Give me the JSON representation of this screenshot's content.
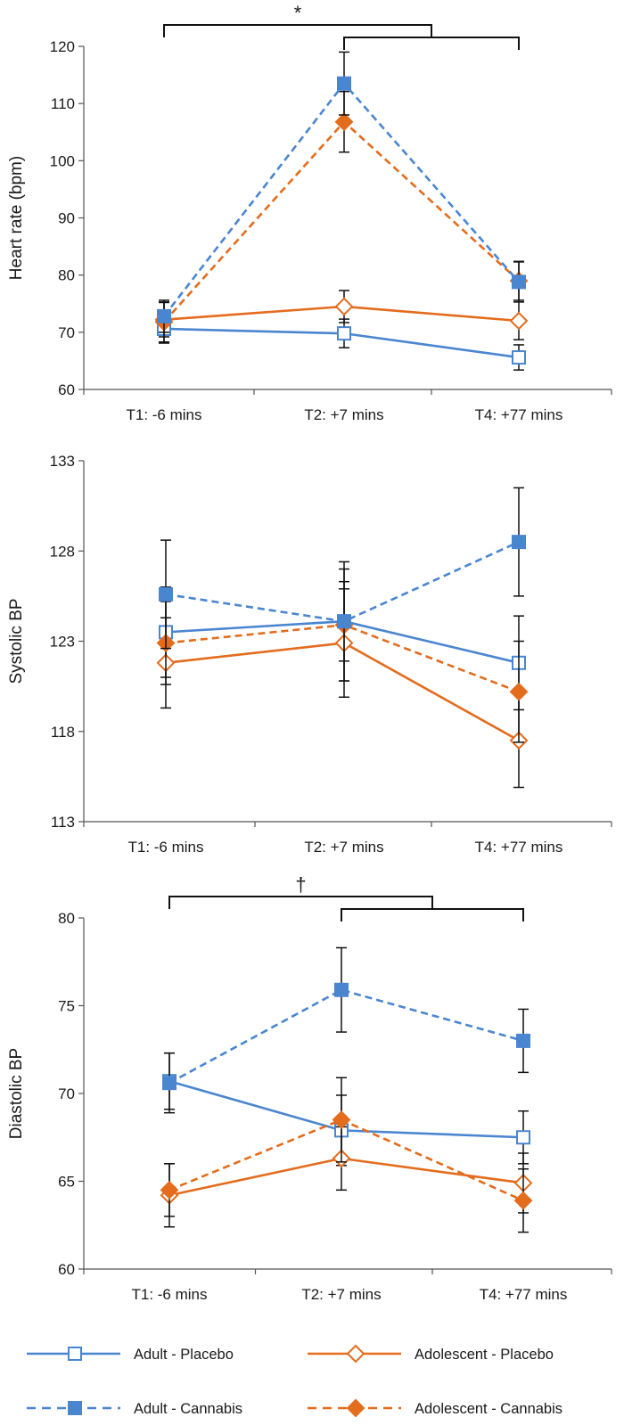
{
  "legend": [
    {
      "key": "adult_placebo",
      "label": "Adult - Placebo"
    },
    {
      "key": "adult_cannabis",
      "label": "Adult - Cannabis"
    },
    {
      "key": "adolescent_placebo",
      "label": "Adolescent - Placebo"
    },
    {
      "key": "adolescent_cannabis",
      "label": "Adolescent - Cannabis"
    }
  ],
  "styles": {
    "adult_placebo": {
      "color": "#4a86d0",
      "dash": "solid",
      "marker": "square",
      "filled": false
    },
    "adult_cannabis": {
      "color": "#4a86d0",
      "dash": "dashed",
      "marker": "square",
      "filled": true
    },
    "adolescent_placebo": {
      "color": "#e36c1d",
      "dash": "solid",
      "marker": "diamond",
      "filled": false
    },
    "adolescent_cannabis": {
      "color": "#e36c1d",
      "dash": "dashed",
      "marker": "diamond",
      "filled": true
    }
  },
  "chart_data": [
    {
      "type": "line",
      "title": "",
      "xlabel": "",
      "ylabel": "Heart rate (bpm)",
      "categories": [
        "T1: -6 mins",
        "T2: +7 mins",
        "T4: +77 mins"
      ],
      "ylim": [
        60,
        120
      ],
      "yticks": [
        60,
        70,
        80,
        90,
        100,
        110,
        120
      ],
      "series": [
        {
          "key": "adult_placebo",
          "name": "Adult - Placebo",
          "values": [
            70.6,
            69.8,
            65.6
          ],
          "errors": [
            2.5,
            2.5,
            2.2
          ]
        },
        {
          "key": "adult_cannabis",
          "name": "Adult - Cannabis",
          "values": [
            72.8,
            113.5,
            78.8
          ],
          "errors": [
            2.8,
            5.5,
            3.5
          ]
        },
        {
          "key": "adolescent_placebo",
          "name": "Adolescent - Placebo",
          "values": [
            72.2,
            74.5,
            72.0
          ],
          "errors": [
            3.0,
            2.8,
            3.3
          ]
        },
        {
          "key": "adolescent_cannabis",
          "name": "Adolescent - Cannabis",
          "values": [
            71.8,
            106.8,
            79.0
          ],
          "errors": [
            3.5,
            5.3,
            3.4
          ]
        }
      ],
      "annotation": {
        "label": "*",
        "from": 0,
        "mid_from": 1,
        "to": 2
      }
    },
    {
      "type": "line",
      "title": "",
      "xlabel": "",
      "ylabel": "Systolic BP",
      "categories": [
        "T1: -6 mins",
        "T2: +7 mins",
        "T4: +77 mins"
      ],
      "ylim": [
        113,
        133
      ],
      "yticks": [
        113,
        118,
        123,
        128,
        133
      ],
      "series": [
        {
          "key": "adult_placebo",
          "name": "Adult - Placebo",
          "values": [
            123.5,
            124.1,
            121.8
          ],
          "errors": [
            2.5,
            2.2,
            2.6
          ]
        },
        {
          "key": "adult_cannabis",
          "name": "Adult - Cannabis",
          "values": [
            125.6,
            124.1,
            128.5
          ],
          "errors": [
            3.0,
            3.3,
            3.0
          ]
        },
        {
          "key": "adolescent_placebo",
          "name": "Adolescent - Placebo",
          "values": [
            121.8,
            122.9,
            117.5
          ],
          "errors": [
            2.5,
            3.0,
            2.6
          ]
        },
        {
          "key": "adolescent_cannabis",
          "name": "Adolescent - Cannabis",
          "values": [
            122.9,
            123.9,
            120.2
          ],
          "errors": [
            2.3,
            3.1,
            2.8
          ]
        }
      ]
    },
    {
      "type": "line",
      "title": "",
      "xlabel": "",
      "ylabel": "Diastolic BP",
      "categories": [
        "T1: -6 mins",
        "T2: +7 mins",
        "T4: +77 mins"
      ],
      "ylim": [
        60,
        80
      ],
      "yticks": [
        60,
        65,
        70,
        75,
        80
      ],
      "series": [
        {
          "key": "adult_placebo",
          "name": "Adult - Placebo",
          "values": [
            70.7,
            67.9,
            67.5
          ],
          "errors": [
            1.6,
            2.0,
            1.5
          ]
        },
        {
          "key": "adult_cannabis",
          "name": "Adult - Cannabis",
          "values": [
            70.6,
            75.9,
            73.0
          ],
          "errors": [
            1.7,
            2.4,
            1.8
          ]
        },
        {
          "key": "adolescent_placebo",
          "name": "Adolescent - Placebo",
          "values": [
            64.2,
            66.3,
            64.9
          ],
          "errors": [
            1.8,
            1.8,
            1.7
          ]
        },
        {
          "key": "adolescent_cannabis",
          "name": "Adolescent - Cannabis",
          "values": [
            64.5,
            68.5,
            63.9
          ],
          "errors": [
            1.5,
            2.4,
            1.8
          ]
        }
      ],
      "annotation": {
        "label": "†",
        "from": 0,
        "mid_from": 1,
        "to": 2
      }
    }
  ]
}
